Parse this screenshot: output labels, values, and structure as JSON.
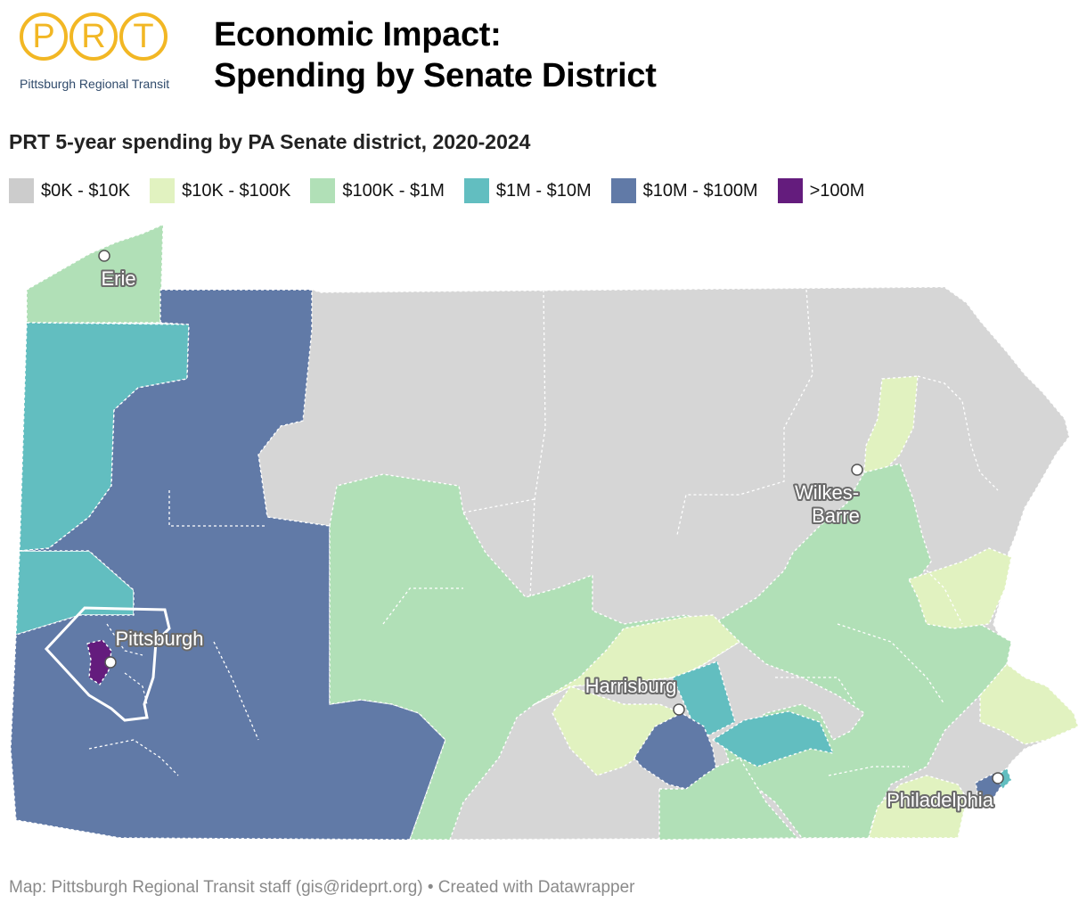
{
  "logo": {
    "letters": [
      "P",
      "R",
      "T"
    ],
    "subtitle": "Pittsburgh Regional Transit"
  },
  "title_line1": "Economic Impact:",
  "title_line2": "Spending by Senate District",
  "subtitle": "PRT 5-year spending by PA Senate district, 2020-2024",
  "legend": [
    {
      "label": "$0K - $10K",
      "color": "#cccccc"
    },
    {
      "label": "$10K - $100K",
      "color": "#e1f2c0"
    },
    {
      "label": "$100K - $1M",
      "color": "#b1e0b7"
    },
    {
      "label": "$1M - $10M",
      "color": "#62bec0"
    },
    {
      "label": "$10M - $100M",
      "color": "#617aa7"
    },
    {
      "label": ">100M",
      "color": "#641c7d"
    }
  ],
  "cities": {
    "erie": "Erie",
    "pittsburgh": "Pittsburgh",
    "wilkes_line1": "Wilkes-",
    "wilkes_line2": "Barre",
    "harrisburg": "Harrisburg",
    "philadelphia": "Philadelphia"
  },
  "footer": "Map: Pittsburgh Regional Transit staff (gis@rideprt.org) • Created with Datawrapper"
}
